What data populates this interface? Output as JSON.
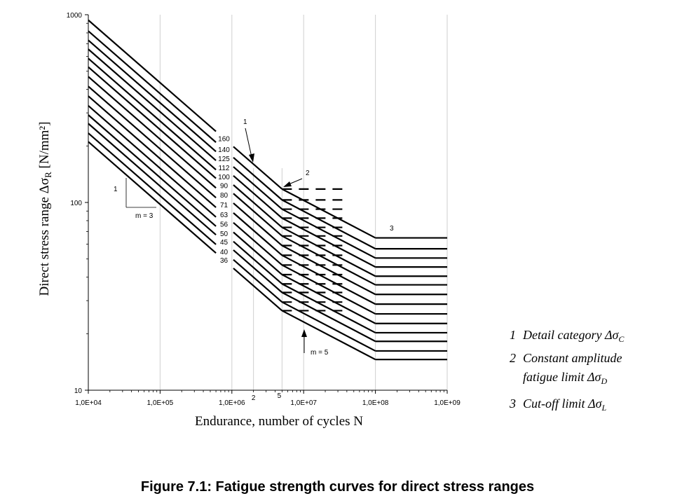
{
  "chart_data": {
    "type": "line",
    "xscale": "log",
    "yscale": "log",
    "xlim": [
      10000,
      1000000000
    ],
    "ylim": [
      10,
      1000
    ],
    "x_tick_labels": [
      "1,0E+04",
      "1,0E+05",
      "1,0E+06",
      "1,0E+07",
      "1,0E+08",
      "1,0E+09"
    ],
    "y_tick_labels": [
      "10",
      "100",
      "1000"
    ],
    "xlabel": "Endurance, number of cycles N",
    "ylabel_main": "Direct stress range Δσ",
    "ylabel_sub": "R",
    "ylabel_unit": " [N/mm²]",
    "categories": [
      160,
      140,
      125,
      112,
      100,
      90,
      80,
      71,
      63,
      56,
      50,
      45,
      40,
      36
    ],
    "category_labels": [
      "160",
      "140",
      "125",
      "112",
      "100",
      "90",
      "80",
      "71",
      "63",
      "56",
      "50",
      "45",
      "40",
      "36"
    ],
    "reference_cycles": 2000000,
    "constant_amplitude_limit_cycles": 5000000,
    "cut_off_limit_cycles": 100000000,
    "slopes": [
      3,
      5
    ],
    "annotations": {
      "slope_m3": "m = 3",
      "slope_m5": "m = 5",
      "slope_marker_1": "1",
      "marker_1": "1",
      "marker_2": "2",
      "marker_3": "3",
      "vline_label_2": "2",
      "vline_label_5": "5"
    },
    "legend": [
      {
        "num": "1",
        "text": "Detail category Δσ",
        "sub": "C"
      },
      {
        "num": "2",
        "text": "Constant amplitude",
        "text2": "fatigue limit Δσ",
        "sub": "D"
      },
      {
        "num": "3",
        "text": "Cut-off limit Δσ",
        "sub": "L"
      }
    ],
    "caption": "Figure 7.1: Fatigue strength curves for direct stress ranges"
  }
}
